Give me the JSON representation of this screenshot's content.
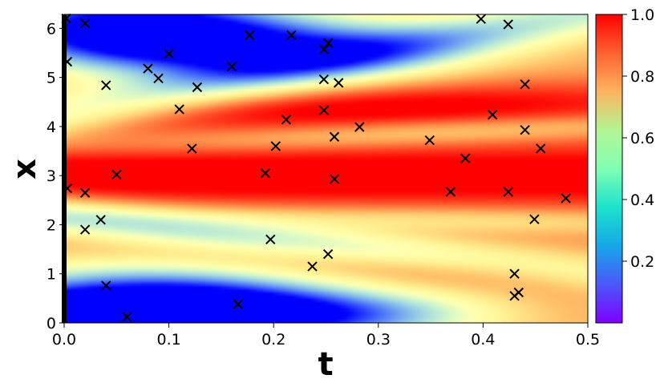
{
  "chart_data": {
    "type": "heatmap",
    "title": "",
    "xlabel": "t",
    "ylabel": "x",
    "xlim": [
      0,
      0.5
    ],
    "ylim": [
      0,
      6.283
    ],
    "x_ticks": [
      0.0,
      0.1,
      0.2,
      0.3,
      0.4,
      0.5
    ],
    "x_tick_labels": [
      "0.0",
      "0.1",
      "0.2",
      "0.3",
      "0.4",
      "0.5"
    ],
    "y_ticks": [
      0,
      1,
      2,
      3,
      4,
      5,
      6
    ],
    "y_tick_labels": [
      "0",
      "1",
      "2",
      "3",
      "4",
      "5",
      "6"
    ],
    "colormap": "rainbow",
    "colorbar": {
      "range": [
        0.0,
        1.0
      ],
      "ticks": [
        0.2,
        0.4,
        0.6,
        0.8,
        1.0
      ],
      "tick_labels": [
        "0.2",
        "0.4",
        "0.6",
        "0.8",
        "1.0"
      ]
    },
    "grid": false,
    "initial_condition_line_at_t": 0.0,
    "markers": {
      "symbol": "x",
      "color": "#000000",
      "points": [
        {
          "t": 0.002,
          "x": 6.2
        },
        {
          "t": 0.02,
          "x": 6.1
        },
        {
          "t": 0.003,
          "x": 5.32
        },
        {
          "t": 0.04,
          "x": 4.84
        },
        {
          "t": 0.08,
          "x": 5.18
        },
        {
          "t": 0.09,
          "x": 4.98
        },
        {
          "t": 0.1,
          "x": 5.48
        },
        {
          "t": 0.11,
          "x": 4.35
        },
        {
          "t": 0.127,
          "x": 4.8
        },
        {
          "t": 0.16,
          "x": 5.22
        },
        {
          "t": 0.177,
          "x": 5.86
        },
        {
          "t": 0.217,
          "x": 5.86
        },
        {
          "t": 0.252,
          "x": 5.7
        },
        {
          "t": 0.248,
          "x": 5.57
        },
        {
          "t": 0.248,
          "x": 4.96
        },
        {
          "t": 0.262,
          "x": 4.89
        },
        {
          "t": 0.248,
          "x": 4.33
        },
        {
          "t": 0.212,
          "x": 4.14
        },
        {
          "t": 0.122,
          "x": 3.55
        },
        {
          "t": 0.202,
          "x": 3.6
        },
        {
          "t": 0.258,
          "x": 3.79
        },
        {
          "t": 0.282,
          "x": 3.99
        },
        {
          "t": 0.05,
          "x": 3.02
        },
        {
          "t": 0.192,
          "x": 3.05
        },
        {
          "t": 0.258,
          "x": 2.93
        },
        {
          "t": 0.003,
          "x": 2.74
        },
        {
          "t": 0.02,
          "x": 2.65
        },
        {
          "t": 0.035,
          "x": 2.1
        },
        {
          "t": 0.02,
          "x": 1.9
        },
        {
          "t": 0.197,
          "x": 1.7
        },
        {
          "t": 0.237,
          "x": 1.15
        },
        {
          "t": 0.252,
          "x": 1.4
        },
        {
          "t": 0.04,
          "x": 0.76
        },
        {
          "t": 0.06,
          "x": 0.12
        },
        {
          "t": 0.166,
          "x": 0.38
        },
        {
          "t": 0.398,
          "x": 6.19
        },
        {
          "t": 0.424,
          "x": 6.08
        },
        {
          "t": 0.44,
          "x": 4.86
        },
        {
          "t": 0.409,
          "x": 4.24
        },
        {
          "t": 0.44,
          "x": 3.93
        },
        {
          "t": 0.349,
          "x": 3.72
        },
        {
          "t": 0.455,
          "x": 3.55
        },
        {
          "t": 0.383,
          "x": 3.35
        },
        {
          "t": 0.369,
          "x": 2.67
        },
        {
          "t": 0.424,
          "x": 2.67
        },
        {
          "t": 0.479,
          "x": 2.54
        },
        {
          "t": 0.449,
          "x": 2.11
        },
        {
          "t": 0.43,
          "x": 1.0
        },
        {
          "t": 0.434,
          "x": 0.62
        },
        {
          "t": 0.43,
          "x": 0.55
        }
      ]
    }
  }
}
